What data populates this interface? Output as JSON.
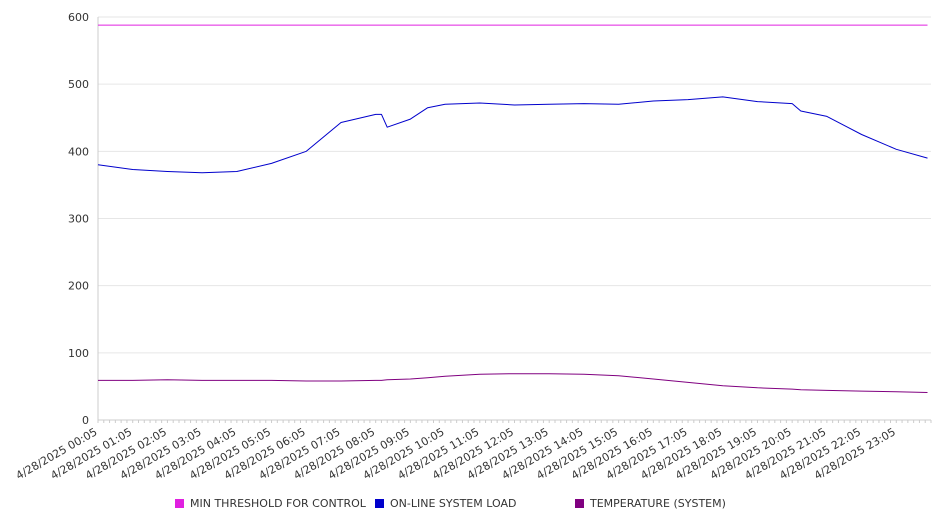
{
  "chart_data": {
    "type": "line",
    "title": "",
    "xlabel": "",
    "ylabel": "",
    "ylim": [
      0,
      600
    ],
    "yticks": [
      0,
      100,
      200,
      300,
      400,
      500,
      600
    ],
    "grid": "horizontal",
    "legend_position": "bottom",
    "xtick_labels": [
      "4/28/2025 00:05",
      "4/28/2025 01:05",
      "4/28/2025 02:05",
      "4/28/2025 03:05",
      "4/28/2025 04:05",
      "4/28/2025 05:05",
      "4/28/2025 06:05",
      "4/28/2025 07:05",
      "4/28/2025 08:05",
      "4/28/2025 09:05",
      "4/28/2025 10:05",
      "4/28/2025 11:05",
      "4/28/2025 12:05",
      "4/28/2025 13:05",
      "4/28/2025 14:05",
      "4/28/2025 15:05",
      "4/28/2025 16:05",
      "4/28/2025 17:05",
      "4/28/2025 18:05",
      "4/28/2025 19:05",
      "4/28/2025 20:05",
      "4/28/2025 21:05",
      "4/28/2025 22:05",
      "4/28/2025 23:05"
    ],
    "x": [
      "00:05",
      "01:05",
      "02:05",
      "03:05",
      "04:05",
      "05:05",
      "06:05",
      "07:05",
      "08:05",
      "08:15",
      "08:25",
      "09:05",
      "09:35",
      "10:05",
      "11:05",
      "12:05",
      "13:05",
      "14:05",
      "15:05",
      "16:05",
      "17:05",
      "18:05",
      "19:05",
      "20:05",
      "20:20",
      "21:05",
      "22:05",
      "23:05",
      "23:59"
    ],
    "series": [
      {
        "name": "MIN THRESHOLD FOR CONTROL",
        "color": "#e020e0",
        "values": [
          588,
          588,
          588,
          588,
          588,
          588,
          588,
          588,
          588,
          588,
          588,
          588,
          588,
          588,
          588,
          588,
          588,
          588,
          588,
          588,
          588,
          588,
          588,
          588,
          588,
          588,
          588,
          588,
          588
        ]
      },
      {
        "name": "ON-LINE SYSTEM LOAD",
        "color": "#0000cc",
        "values": [
          380,
          373,
          370,
          368,
          370,
          382,
          400,
          443,
          455,
          455,
          436,
          448,
          465,
          470,
          472,
          469,
          470,
          471,
          470,
          475,
          477,
          481,
          474,
          471,
          460,
          452,
          425,
          403,
          390
        ]
      },
      {
        "name": "TEMPERATURE (SYSTEM)",
        "color": "#800080",
        "values": [
          59,
          59,
          60,
          59,
          59,
          59,
          58,
          58,
          59,
          59,
          60,
          61,
          63,
          65,
          68,
          69,
          69,
          68,
          66,
          61,
          56,
          51,
          48,
          46,
          45,
          44,
          43,
          42,
          41
        ]
      }
    ]
  }
}
